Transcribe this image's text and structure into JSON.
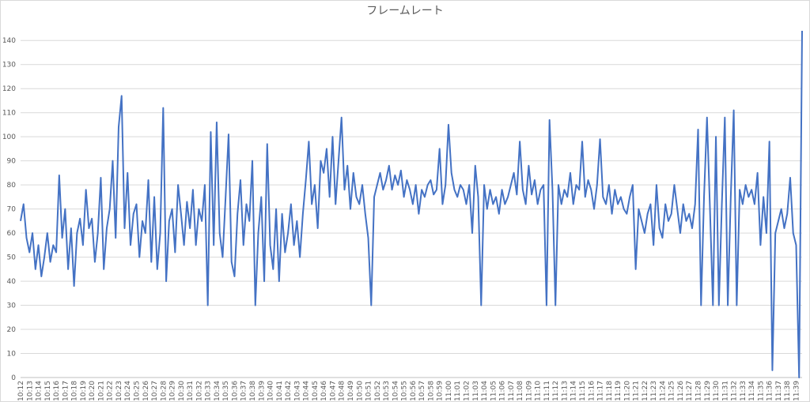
{
  "chart_data": {
    "type": "line",
    "title": "フレームレート",
    "categories": [
      "10:12",
      null,
      null,
      "10:13",
      null,
      null,
      "10:14",
      null,
      null,
      "10:15",
      null,
      null,
      "10:16",
      null,
      null,
      "10:17",
      null,
      null,
      "10:18",
      null,
      null,
      "10:19",
      null,
      null,
      "10:20",
      null,
      null,
      "10:21",
      null,
      null,
      "10:22",
      null,
      null,
      "10:23",
      null,
      null,
      "10:24",
      null,
      null,
      "10:25",
      null,
      null,
      "10:26",
      null,
      null,
      "10:27",
      null,
      null,
      "10:28",
      null,
      null,
      "10:29",
      null,
      null,
      "10:30",
      null,
      null,
      "10:31",
      null,
      null,
      "10:32",
      null,
      null,
      "10:33",
      null,
      null,
      "10:34",
      null,
      null,
      "10:35",
      null,
      null,
      "10:36",
      null,
      null,
      "10:37",
      null,
      null,
      "10:38",
      null,
      null,
      "10:39",
      null,
      null,
      "10:40",
      null,
      null,
      "10:41",
      null,
      null,
      "10:42",
      null,
      null,
      "10:43",
      null,
      null,
      "10:44",
      null,
      null,
      "10:45",
      null,
      null,
      "10:46",
      null,
      null,
      "10:47",
      null,
      null,
      "10:48",
      null,
      null,
      "10:49",
      null,
      null,
      "10:50",
      null,
      null,
      "10:51",
      null,
      null,
      "10:52",
      null,
      null,
      "10:53",
      null,
      null,
      "10:54",
      null,
      null,
      "10:55",
      null,
      null,
      "10:56",
      null,
      null,
      "10:57",
      null,
      null,
      "10:58",
      null,
      null,
      "10:59",
      null,
      null,
      "11:00",
      null,
      null,
      "11:01",
      null,
      null,
      "11:02",
      null,
      null,
      "11:03",
      null,
      null,
      "11:04",
      null,
      null,
      "11:05",
      null,
      null,
      "11:06",
      null,
      null,
      "11:07",
      null,
      null,
      "11:08",
      null,
      null,
      "11:09",
      null,
      null,
      "11:10",
      null,
      null,
      "11:11",
      null,
      null,
      "11:12",
      null,
      null,
      "11:13",
      null,
      null,
      "11:14",
      null,
      null,
      "11:15",
      null,
      null,
      "11:16",
      null,
      null,
      "11:17",
      null,
      null,
      "11:18",
      null,
      null,
      "11:19",
      null,
      null,
      "11:20",
      null,
      null,
      "11:21",
      null,
      null,
      "11:22",
      null,
      null,
      "11:23",
      null,
      null,
      "11:24",
      null,
      null,
      "11:25",
      null,
      null,
      "11:26",
      null,
      null,
      "11:27",
      null,
      null,
      "11:28",
      null,
      null,
      "11:29",
      null,
      null,
      "11:30",
      null,
      null,
      "11:31",
      null,
      null,
      "11:32",
      null,
      null,
      "11:33",
      null,
      null,
      "11:34",
      null,
      null,
      "11:35",
      null,
      null,
      "11:36",
      null,
      null,
      "11:37",
      null,
      null,
      "11:38",
      null,
      null,
      "11:39",
      null,
      null
    ],
    "series": [
      {
        "color": "#4472c4",
        "values": [
          65,
          72,
          58,
          52,
          60,
          45,
          55,
          42,
          50,
          60,
          48,
          55,
          52,
          84,
          58,
          70,
          45,
          62,
          38,
          60,
          66,
          55,
          78,
          62,
          66,
          48,
          60,
          83,
          45,
          62,
          70,
          90,
          58,
          104,
          117,
          62,
          85,
          55,
          68,
          72,
          50,
          65,
          60,
          82,
          48,
          75,
          45,
          60,
          112,
          40,
          65,
          70,
          52,
          80,
          68,
          55,
          73,
          62,
          78,
          55,
          70,
          65,
          80,
          30,
          102,
          55,
          106,
          60,
          50,
          75,
          101,
          48,
          42,
          68,
          82,
          55,
          72,
          65,
          90,
          30,
          60,
          75,
          40,
          97,
          55,
          45,
          70,
          40,
          68,
          52,
          60,
          72,
          55,
          65,
          50,
          68,
          82,
          98,
          72,
          80,
          62,
          90,
          85,
          95,
          75,
          100,
          72,
          90,
          108,
          78,
          88,
          70,
          85,
          75,
          72,
          80,
          68,
          58,
          30,
          75,
          80,
          85,
          78,
          82,
          88,
          78,
          84,
          80,
          86,
          75,
          82,
          78,
          72,
          80,
          68,
          78,
          75,
          80,
          82,
          76,
          78,
          95,
          72,
          80,
          105,
          85,
          78,
          75,
          80,
          78,
          72,
          80,
          60,
          88,
          75,
          30,
          80,
          70,
          78,
          72,
          75,
          68,
          78,
          72,
          75,
          80,
          85,
          76,
          98,
          78,
          72,
          88,
          76,
          82,
          72,
          78,
          80,
          30,
          107,
          78,
          30,
          80,
          72,
          78,
          75,
          85,
          72,
          80,
          78,
          98,
          75,
          82,
          78,
          70,
          80,
          99,
          75,
          72,
          80,
          68,
          78,
          72,
          75,
          70,
          68,
          75,
          80,
          45,
          70,
          65,
          60,
          68,
          72,
          55,
          80,
          62,
          58,
          72,
          65,
          68,
          80,
          70,
          60,
          72,
          65,
          68,
          62,
          72,
          103,
          30,
          75,
          108,
          70,
          30,
          100,
          30,
          72,
          108,
          30,
          75,
          111,
          30,
          78,
          72,
          80,
          75,
          78,
          72,
          85,
          55,
          75,
          60,
          98,
          3,
          60,
          65,
          70,
          62,
          68,
          83,
          60,
          55,
          0,
          144
        ]
      }
    ],
    "ylim": [
      0,
      145
    ],
    "yticks": [
      0,
      10,
      20,
      30,
      40,
      50,
      60,
      70,
      80,
      90,
      100,
      110,
      120,
      130,
      140
    ],
    "grid": true
  }
}
